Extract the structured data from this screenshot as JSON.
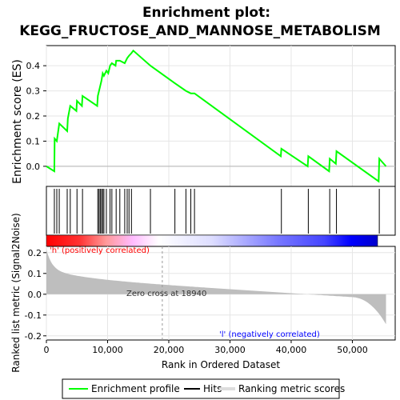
{
  "chart_data": {
    "type": "line",
    "title": "Enrichment plot:",
    "subtitle": "KEGG_FRUCTOSE_AND_MANNOSE_METABOLISM",
    "xlabel": "Rank in Ordered Dataset",
    "es_ylabel": "Enrichment score (ES)",
    "metric_ylabel": "Ranked list metric (Signal2Noise)",
    "xlim": [
      0,
      57000
    ],
    "es_ylim": [
      -0.08,
      0.48
    ],
    "metric_ylim": [
      -0.22,
      0.23
    ],
    "x_ticks": [
      "0",
      "10,000",
      "20,000",
      "30,000",
      "40,000",
      "50,000"
    ],
    "x_tick_values": [
      0,
      10000,
      20000,
      30000,
      40000,
      50000
    ],
    "es_ticks": [
      "0.0",
      "0.1",
      "0.2",
      "0.3",
      "0.4"
    ],
    "es_tick_values": [
      0.0,
      0.1,
      0.2,
      0.3,
      0.4
    ],
    "metric_ticks": [
      "0.2",
      "0.1",
      "0.0",
      "-0.1",
      "-0.2"
    ],
    "metric_tick_values": [
      0.2,
      0.1,
      0.0,
      -0.1,
      -0.2
    ],
    "annotations": {
      "positive": "'h' (positively correlated)",
      "zero_cross": "Zero cross at 18940",
      "negative": "'l' (negatively correlated)"
    },
    "zero_cross": 18940,
    "series": [
      {
        "name": "Enrichment profile",
        "color": "#00ff00",
        "x": [
          0,
          1300,
          1350,
          1700,
          2100,
          3400,
          3500,
          3900,
          4900,
          5000,
          5800,
          5900,
          8300,
          8400,
          8600,
          8800,
          9000,
          9200,
          9400,
          9800,
          10100,
          10400,
          10700,
          11300,
          11400,
          12000,
          12800,
          13200,
          13500,
          13900,
          14200,
          17000,
          21000,
          22800,
          23600,
          24200,
          38300,
          38400,
          42700,
          42800,
          46200,
          46300,
          47300,
          47400,
          54300,
          54400,
          55500
        ],
        "y": [
          0.0,
          -0.02,
          0.11,
          0.1,
          0.17,
          0.14,
          0.19,
          0.24,
          0.22,
          0.26,
          0.24,
          0.28,
          0.24,
          0.28,
          0.3,
          0.32,
          0.34,
          0.37,
          0.36,
          0.38,
          0.37,
          0.4,
          0.41,
          0.4,
          0.42,
          0.42,
          0.41,
          0.43,
          0.44,
          0.45,
          0.46,
          0.4,
          0.33,
          0.3,
          0.29,
          0.29,
          0.04,
          0.07,
          0.0,
          0.04,
          -0.02,
          0.03,
          0.01,
          0.06,
          -0.06,
          0.03,
          0.0
        ]
      }
    ],
    "hits": [
      1300,
      1700,
      2100,
      3400,
      3900,
      5000,
      5900,
      8400,
      8600,
      8800,
      9000,
      9200,
      9400,
      9800,
      10400,
      10700,
      11400,
      12000,
      12800,
      13200,
      13500,
      13900,
      17000,
      21000,
      22800,
      23600,
      24200,
      38400,
      42800,
      46300,
      47400,
      54400
    ],
    "legend": [
      "Enrichment profile",
      "Hits",
      "Ranking metric scores"
    ],
    "legend_position": "bottom",
    "colors": {
      "profile": "#00ff00",
      "hits": "#000000",
      "metric_fill": "#bebebe",
      "positive_text": "#ff0000",
      "negative_text": "#0000ff",
      "grid": "#e6e6e6",
      "zero_line": "#b3b3b3"
    }
  }
}
